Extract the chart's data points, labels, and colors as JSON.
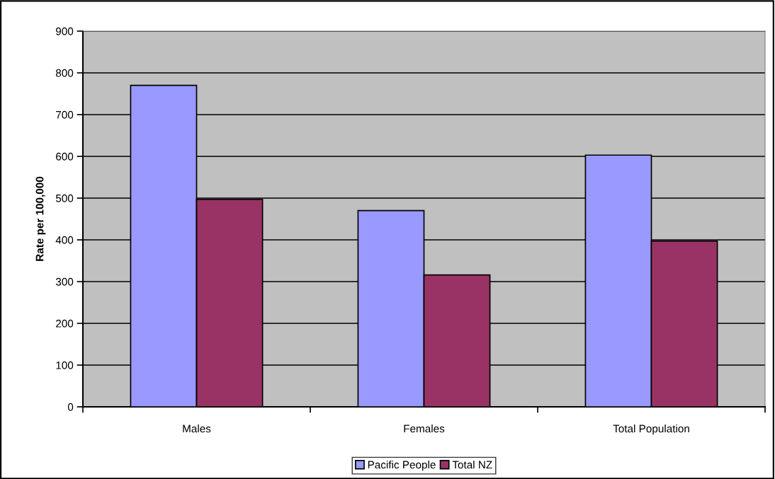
{
  "chart_data": {
    "type": "bar",
    "ylabel": "Rate per 100,000",
    "categories": [
      "Males",
      "Females",
      "Total Population"
    ],
    "series": [
      {
        "name": "Pacific People",
        "color": "#9999ff",
        "values": [
          770,
          470,
          603
        ]
      },
      {
        "name": "Total NZ",
        "color": "#993366",
        "values": [
          497,
          316,
          397
        ]
      }
    ],
    "ylim": [
      0,
      900
    ],
    "yticks": [
      0,
      100,
      200,
      300,
      400,
      500,
      600,
      700,
      800,
      900
    ],
    "grid": "y",
    "legend": "bottom"
  }
}
